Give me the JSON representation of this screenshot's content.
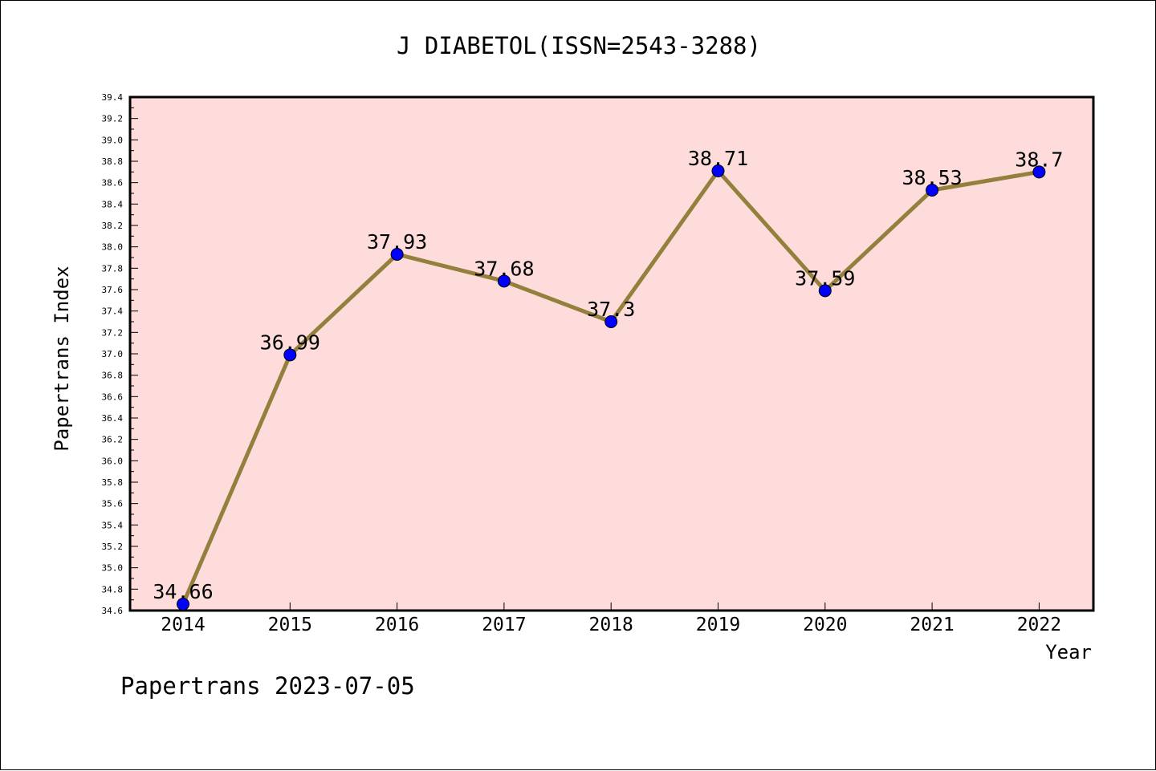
{
  "chart_data": {
    "type": "line",
    "title": "J DIABETOL(ISSN=2543-3288)",
    "xlabel": "Year",
    "ylabel": "Papertrans Index",
    "categories": [
      "2014",
      "2015",
      "2016",
      "2017",
      "2018",
      "2019",
      "2020",
      "2021",
      "2022"
    ],
    "series": [
      {
        "values": [
          34.66,
          36.99,
          37.93,
          37.68,
          37.3,
          38.71,
          37.59,
          38.53,
          38.7
        ],
        "data_labels": [
          "34.66",
          "36.99",
          "37.93",
          "37.68",
          "37.3",
          "38.71",
          "37.59",
          "38.53",
          "38.7"
        ]
      }
    ],
    "ylim": [
      34.6,
      39.4
    ],
    "yticks": [
      "34.6",
      "34.8",
      "35.0",
      "35.2",
      "35.4",
      "35.6",
      "35.8",
      "36.0",
      "36.2",
      "36.4",
      "36.6",
      "36.8",
      "37.0",
      "37.2",
      "37.4",
      "37.6",
      "37.8",
      "38.0",
      "38.2",
      "38.4",
      "38.6",
      "38.8",
      "39.0",
      "39.2",
      "39.4"
    ],
    "grid": false,
    "colors": {
      "plot_background": "#fddcdb",
      "line": "#94803c",
      "marker": "#0000ff"
    }
  },
  "footer": "Papertrans 2023-07-05"
}
